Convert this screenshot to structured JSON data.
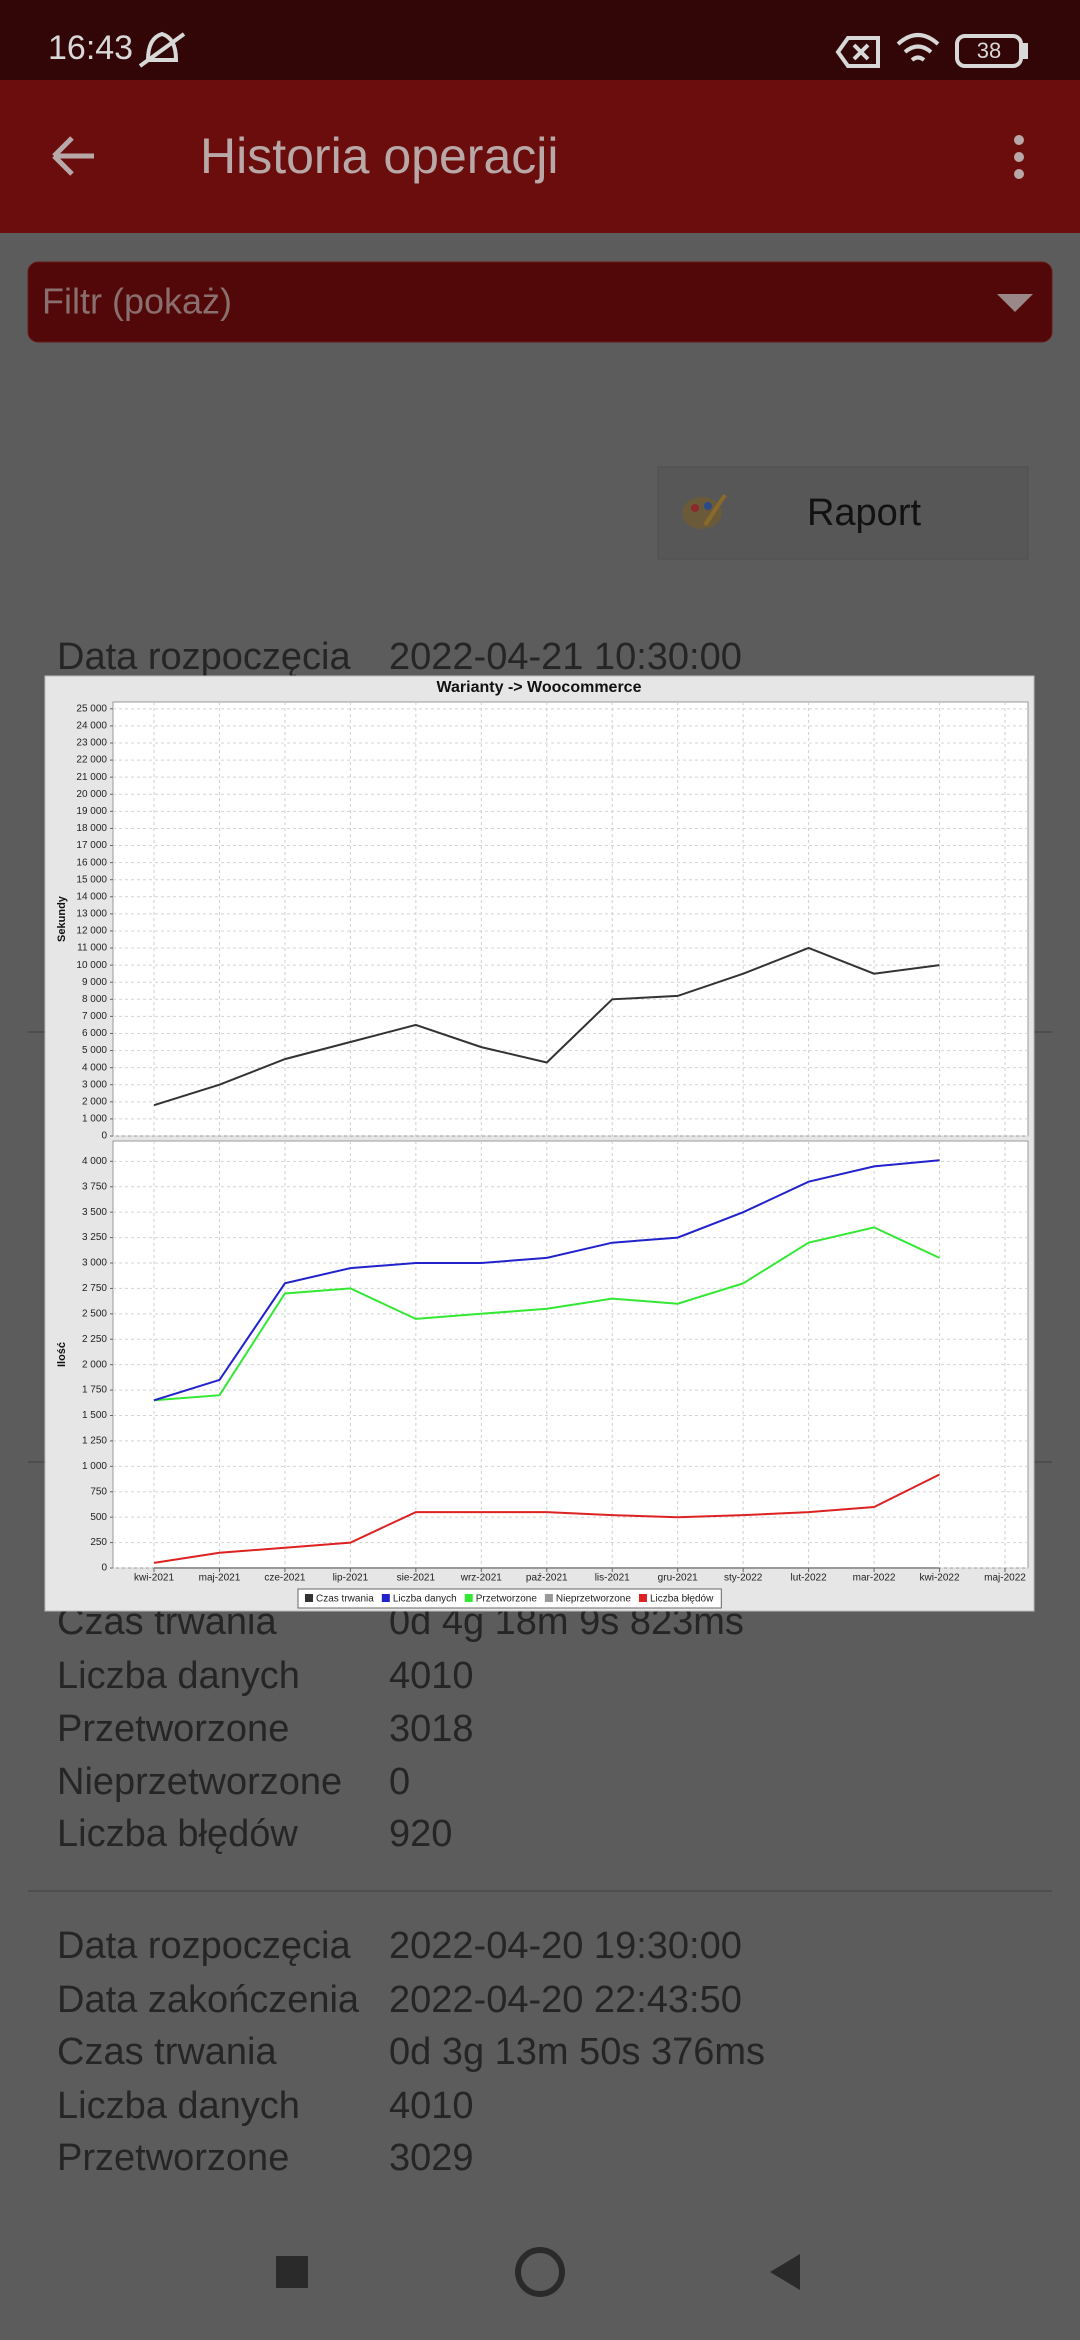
{
  "status_bar": {
    "time": "16:43",
    "battery": "38"
  },
  "app_bar": {
    "title": "Historia operacji"
  },
  "filter": {
    "label": "Filtr (pokaż)"
  },
  "report_button": {
    "label": "Raport"
  },
  "records": [
    {
      "fields": [
        {
          "label": "Data rozpoczęcia",
          "value": "2022-04-21 10:30:00"
        },
        {
          "label": "Czas trwania",
          "value": "0d 4g 18m 9s 823ms"
        },
        {
          "label": "Liczba danych",
          "value": "4010"
        },
        {
          "label": "Przetworzone",
          "value": "3018"
        },
        {
          "label": "Nieprzetworzone",
          "value": "0"
        },
        {
          "label": "Liczba błędów",
          "value": "920"
        }
      ]
    },
    {
      "fields": [
        {
          "label": "Data rozpoczęcia",
          "value": "2022-04-20 19:30:00"
        },
        {
          "label": "Data zakończenia",
          "value": "2022-04-20 22:43:50"
        },
        {
          "label": "Czas trwania",
          "value": "0d 3g 13m 50s 376ms"
        },
        {
          "label": "Liczba danych",
          "value": "4010"
        },
        {
          "label": "Przetworzone",
          "value": "3029"
        }
      ]
    }
  ],
  "chart_data": [
    {
      "type": "line",
      "title": "Warianty -> Woocommerce",
      "y_label": "Sekundy",
      "grid": true,
      "series": [
        {
          "name": "Czas trwania",
          "color": "#333333",
          "values": [
            1800,
            3000,
            4500,
            5500,
            6500,
            5200,
            4300,
            8000,
            8200,
            9500,
            11000,
            9500,
            10000,
            null
          ]
        }
      ],
      "ylim": [
        0,
        25400
      ],
      "yticks": [
        0,
        {
          "value": 1000,
          "label": "1 000"
        },
        {
          "value": 2000,
          "label": "2 000"
        },
        {
          "value": 3000,
          "label": "3 000"
        },
        {
          "value": 4000,
          "label": "4 000"
        },
        {
          "value": 5000,
          "label": "5 000"
        },
        {
          "value": 6000,
          "label": "6 000"
        },
        {
          "value": 7000,
          "label": "7 000"
        },
        {
          "value": 8000,
          "label": "8 000"
        },
        {
          "value": 9000,
          "label": "9 000"
        },
        {
          "value": 10000,
          "label": "10 000"
        },
        {
          "value": 11000,
          "label": "11 000"
        },
        {
          "value": 12000,
          "label": "12 000"
        },
        {
          "value": 13000,
          "label": "13 000"
        },
        {
          "value": 14000,
          "label": "14 000"
        },
        {
          "value": 15000,
          "label": "15 000"
        },
        {
          "value": 16000,
          "label": "16 000"
        },
        {
          "value": 17000,
          "label": "17 000"
        },
        {
          "value": 18000,
          "label": "18 000"
        },
        {
          "value": 19000,
          "label": "19 000"
        },
        {
          "value": 20000,
          "label": "20 000"
        },
        {
          "value": 21000,
          "label": "21 000"
        },
        {
          "value": 22000,
          "label": "22 000"
        },
        {
          "value": 23000,
          "label": "23 000"
        },
        {
          "value": 24000,
          "label": "24 000"
        },
        {
          "value": 25000,
          "label": "25 000"
        }
      ]
    },
    {
      "type": "line",
      "y_label": "Ilość",
      "grid": true,
      "categories": [
        "kwi-2021",
        "maj-2021",
        "cze-2021",
        "lip-2021",
        "sie-2021",
        "wrz-2021",
        "paź-2021",
        "lis-2021",
        "gru-2021",
        "sty-2022",
        "lut-2022",
        "mar-2022",
        "kwi-2022",
        "maj-2022"
      ],
      "series": [
        {
          "name": "Liczba danych",
          "color": "#2222cc",
          "values": [
            1650,
            1850,
            2800,
            2950,
            3000,
            3000,
            3050,
            3200,
            3250,
            3500,
            3800,
            3950,
            4010,
            null
          ]
        },
        {
          "name": "Przetworzone",
          "color": "#33e833",
          "values": [
            1650,
            1700,
            2700,
            2750,
            2450,
            2500,
            2550,
            2650,
            2600,
            2800,
            3200,
            3350,
            3050,
            null
          ]
        },
        {
          "name": "Nieprzetworzone",
          "color": "#999999",
          "values": [
            0,
            0,
            0,
            0,
            0,
            0,
            0,
            0,
            0,
            0,
            0,
            0,
            0,
            null
          ]
        },
        {
          "name": "Liczba błędów",
          "color": "#dd2222",
          "values": [
            50,
            150,
            200,
            250,
            550,
            550,
            550,
            520,
            500,
            520,
            550,
            600,
            920,
            null
          ]
        }
      ],
      "ylim": [
        0,
        4200
      ],
      "yticks": [
        0,
        250,
        500,
        750,
        {
          "value": 1000,
          "label": "1 000"
        },
        {
          "value": 1250,
          "label": "1 250"
        },
        {
          "value": 1500,
          "label": "1 500"
        },
        {
          "value": 1750,
          "label": "1 750"
        },
        {
          "value": 2000,
          "label": "2 000"
        },
        {
          "value": 2250,
          "label": "2 250"
        },
        {
          "value": 2500,
          "label": "2 500"
        },
        {
          "value": 2750,
          "label": "2 750"
        },
        {
          "value": 3000,
          "label": "3 000"
        },
        {
          "value": 3250,
          "label": "3 250"
        },
        {
          "value": 3500,
          "label": "3 500"
        },
        {
          "value": 3750,
          "label": "3 750"
        },
        {
          "value": 4000,
          "label": "4 000"
        }
      ]
    }
  ]
}
